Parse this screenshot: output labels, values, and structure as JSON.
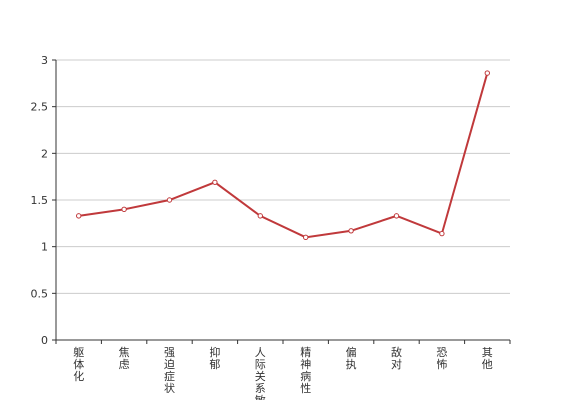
{
  "chart_data": {
    "type": "line",
    "categories": [
      "躯体化",
      "焦虑",
      "强迫症状",
      "抑郁",
      "人际关系敏感",
      "精神病性",
      "偏执",
      "敌对",
      "恐怖",
      "其他"
    ],
    "series": [
      {
        "color": "#c0393b",
        "values": [
          1.33,
          1.4,
          1.5,
          1.69,
          1.33,
          1.1,
          1.17,
          1.33,
          1.14,
          2.86
        ]
      }
    ],
    "ylim": [
      0,
      3
    ],
    "yticks": [
      0,
      0.5,
      1,
      1.5,
      2,
      2.5,
      3
    ],
    "grid": true
  }
}
